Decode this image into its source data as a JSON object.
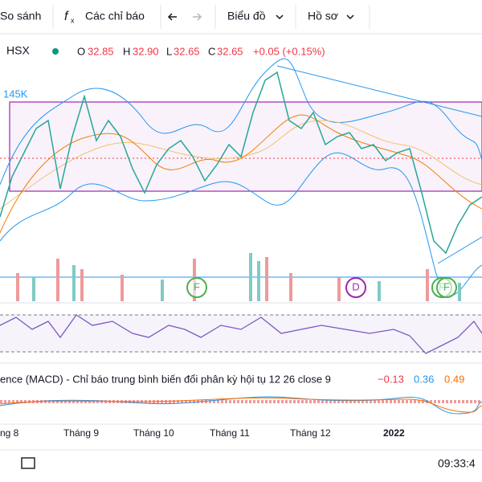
{
  "toolbar": {
    "compare": "So sánh",
    "indicators": "Các chỉ báo",
    "chart": "Biểu đồ",
    "profile": "Hồ sơ"
  },
  "symbol": {
    "exchange": "HSX",
    "open_label": "O",
    "open": "32.85",
    "high_label": "H",
    "high": "32.90",
    "low_label": "L",
    "low": "32.65",
    "close_label": "C",
    "close": "32.65",
    "change": "+0.05 (+0.15%)"
  },
  "volume_label": "145K",
  "events": [
    "F",
    "D",
    "F",
    "F"
  ],
  "macd": {
    "title": "ence (MACD) - Chỉ báo trung bình biến đổi phân kỳ hội tụ 12 26 close 9",
    "hist": "−0.13",
    "macd": "0.36",
    "signal": "0.49"
  },
  "x_axis": [
    "ng 8",
    "Tháng 9",
    "Tháng 10",
    "Tháng 11",
    "Tháng 12",
    "2022"
  ],
  "clock": "09:33:4"
}
